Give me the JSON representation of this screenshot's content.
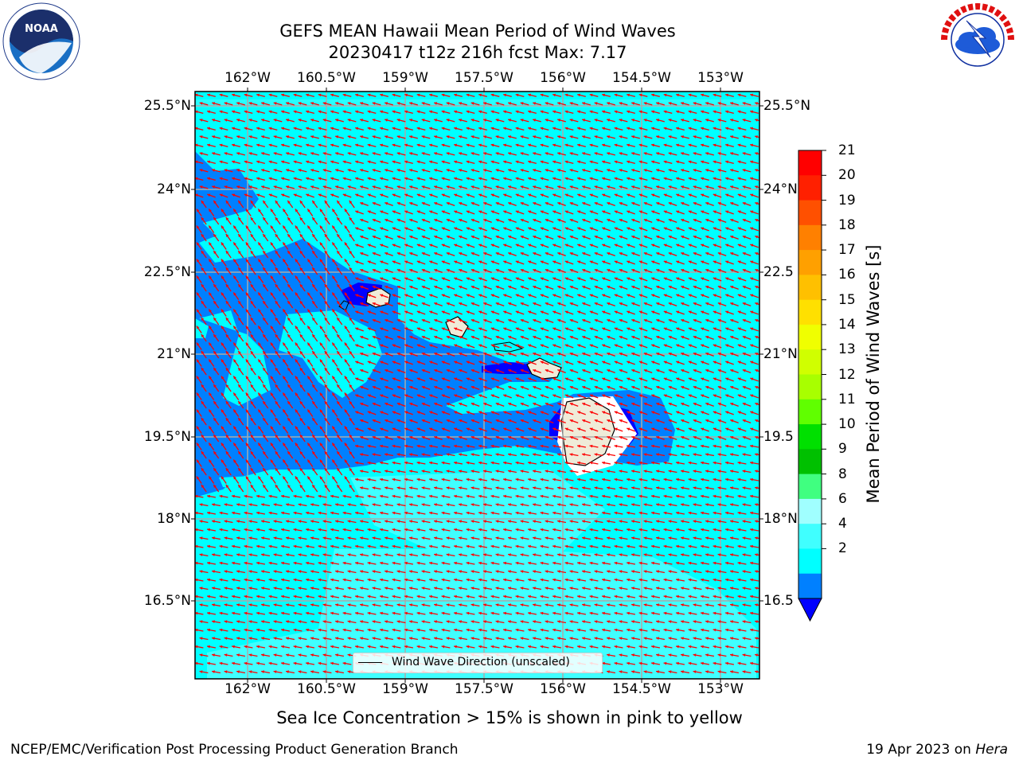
{
  "title": {
    "line1": "GEFS MEAN Hawaii Mean Period of Wind Waves",
    "line2": "20230417 t12z 216h fcst   Max: 7.17"
  },
  "logos": {
    "left": "NOAA",
    "left_ring_text": "NATIONAL OCEANIC AND ATMOSPHERIC ADMINISTRATION · U.S. DEPARTMENT OF COMMERCE",
    "right_ring_text": "NATIONAL WEATHER SERVICE"
  },
  "map": {
    "lon_ticks": [
      "162°W",
      "160.5°W",
      "159°W",
      "157.5°W",
      "156°W",
      "154.5°W",
      "153°W"
    ],
    "lat_ticks_left": [
      "25.5°N",
      "24°N",
      "22.5°N",
      "21°N",
      "19.5°N",
      "18°N",
      "16.5°N"
    ],
    "lat_ticks_right": [
      "25.5°N",
      "24°N",
      "22.5",
      "21°N",
      "19.5",
      "18°N",
      "16.5"
    ],
    "legend_label": "Wind Wave Direction (unscaled)",
    "arrow_color": "#ff0000",
    "ocean_colors": {
      "2-4": "#0080ff",
      "4-6": "#00ffff",
      "6-8": "#40ffff",
      "lt2": "#0000ff",
      "land": "#efebd8"
    }
  },
  "colorbar": {
    "label": "Mean Period of Wind Waves [s]",
    "ticks": [
      "21",
      "20",
      "19",
      "18",
      "17",
      "16",
      "15",
      "14",
      "13",
      "12",
      "11",
      "10",
      "9",
      "8",
      "6",
      "4",
      "2"
    ],
    "colors": [
      "#ff0000",
      "#ff2000",
      "#ff5000",
      "#ff8000",
      "#ffa000",
      "#ffc000",
      "#ffe000",
      "#f0ff00",
      "#d0ff00",
      "#a8ff00",
      "#60ff00",
      "#00e000",
      "#00c000",
      "#40ff80",
      "#a0ffff",
      "#40ffff",
      "#00ffff",
      "#0080ff"
    ],
    "under_color": "#0000ff"
  },
  "note": "Sea Ice Concentration > 15% is shown in pink to yellow",
  "footer": {
    "left": "NCEP/EMC/Verification Post Processing Product Generation Branch",
    "right_date": "19 Apr 2023 on ",
    "right_host": "Hera"
  }
}
